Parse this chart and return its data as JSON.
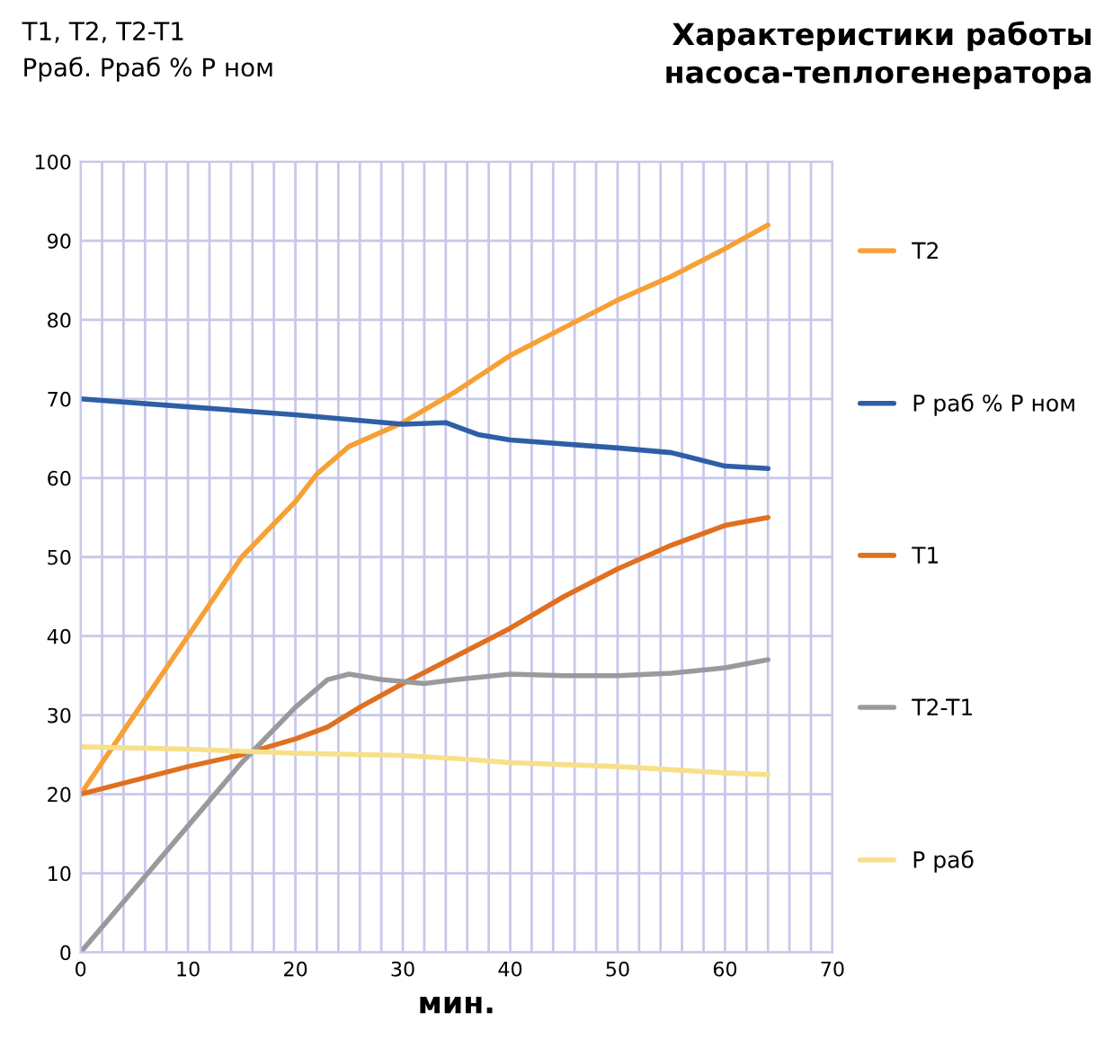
{
  "chart_data": {
    "type": "line",
    "title": "Характеристики работы\nнасоса-теплогенератора",
    "ylabel": "T1, T2, T2-T1\nРраб. Рраб % Р ном",
    "xlabel": "мин.",
    "xlim": [
      0,
      70
    ],
    "xticks": [
      0,
      10,
      20,
      30,
      40,
      50,
      60,
      70
    ],
    "ylim": [
      0,
      100
    ],
    "yticks": [
      0,
      10,
      20,
      30,
      40,
      50,
      60,
      70,
      80,
      90,
      100
    ],
    "grid": true,
    "legend": "right",
    "marker": "none",
    "line_style": "solid",
    "series": [
      {
        "name": "T2",
        "color": "#f7a035",
        "x": [
          0,
          5,
          10,
          15,
          20,
          22,
          25,
          30,
          35,
          40,
          45,
          50,
          55,
          60,
          64
        ],
        "values": [
          20,
          30,
          40,
          50,
          57,
          60.5,
          64,
          67,
          71,
          75.5,
          79,
          82.5,
          85.5,
          89,
          92
        ]
      },
      {
        "name": "P раб % P ном",
        "color": "#2e5fa6",
        "x": [
          0,
          10,
          20,
          30,
          34,
          37,
          40,
          50,
          55,
          60,
          64
        ],
        "values": [
          70,
          69,
          68,
          66.8,
          67,
          65.5,
          64.8,
          63.8,
          63.2,
          61.5,
          61.2
        ]
      },
      {
        "name": "T1",
        "color": "#e07020",
        "x": [
          0,
          10,
          15,
          20,
          23,
          26,
          30,
          35,
          40,
          45,
          50,
          55,
          60,
          64
        ],
        "values": [
          20,
          23.5,
          25,
          27,
          28.5,
          31,
          34,
          37.5,
          41,
          45,
          48.5,
          51.5,
          54,
          55
        ]
      },
      {
        "name": "T2-T1",
        "color": "#9a9a9a",
        "x": [
          0,
          5,
          10,
          15,
          20,
          23,
          25,
          28,
          32,
          35,
          40,
          45,
          50,
          55,
          60,
          64
        ],
        "values": [
          0,
          8,
          16,
          24,
          31,
          34.5,
          35.2,
          34.5,
          34,
          34.5,
          35.2,
          35,
          35,
          35.3,
          36,
          37
        ]
      },
      {
        "name": "P раб",
        "color": "#f8e08a",
        "x": [
          0,
          10,
          20,
          30,
          35,
          40,
          50,
          60,
          64
        ],
        "values": [
          26,
          25.7,
          25.2,
          24.9,
          24.5,
          24,
          23.5,
          22.7,
          22.5
        ]
      }
    ]
  }
}
